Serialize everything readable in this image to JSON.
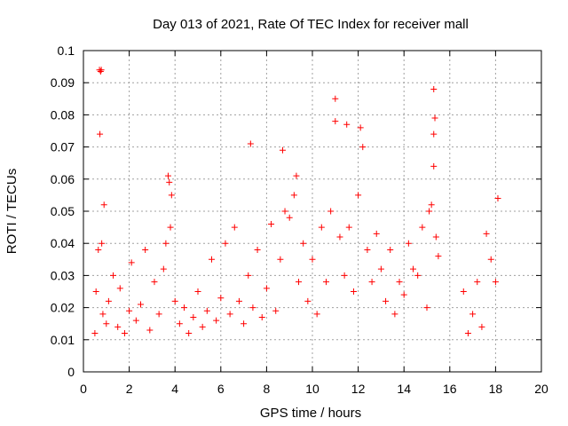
{
  "chart_data": {
    "type": "scatter",
    "title": "Day 013 of 2021, Rate Of TEC Index for receiver mall",
    "xlabel": "GPS time / hours",
    "ylabel": "ROTI / TECUs",
    "xlim": [
      0,
      20
    ],
    "ylim": [
      0,
      0.1
    ],
    "x_ticks": [
      "0",
      "2",
      "4",
      "6",
      "8",
      "10",
      "12",
      "14",
      "16",
      "18",
      "20"
    ],
    "y_ticks": [
      "0",
      "0.01",
      "0.02",
      "0.03",
      "0.04",
      "0.05",
      "0.06",
      "0.07",
      "0.08",
      "0.09",
      "0.1"
    ],
    "grid": true,
    "marker": "plus",
    "marker_color": "#ff0000",
    "series": [
      {
        "x": [
          0.7,
          0.75,
          0.78,
          0.72,
          0.9,
          3.7,
          3.75,
          3.85,
          7.3,
          8.7,
          9.3,
          11.0,
          11.0,
          11.5,
          12.1,
          12.2,
          15.3,
          15.35,
          15.3,
          15.3,
          18.1,
          0.5,
          0.55,
          0.65,
          0.8,
          0.85,
          1.0,
          1.1,
          1.3,
          1.5,
          1.6,
          1.8,
          2.0,
          2.1,
          2.3,
          2.5,
          2.7,
          2.9,
          3.1,
          3.3,
          3.5,
          3.6,
          3.8,
          4.0,
          4.2,
          4.4,
          4.6,
          4.8,
          5.0,
          5.2,
          5.4,
          5.6,
          5.8,
          6.0,
          6.2,
          6.4,
          6.6,
          6.8,
          7.0,
          7.2,
          7.4,
          7.6,
          7.8,
          8.0,
          8.2,
          8.4,
          8.6,
          8.8,
          9.0,
          9.2,
          9.4,
          9.6,
          9.8,
          10.0,
          10.2,
          10.4,
          10.6,
          10.8,
          11.2,
          11.4,
          11.6,
          11.8,
          12.0,
          12.4,
          12.6,
          12.8,
          13.0,
          13.2,
          13.4,
          13.6,
          13.8,
          14.0,
          14.2,
          14.4,
          14.6,
          14.8,
          15.0,
          15.1,
          15.2,
          15.4,
          15.5,
          16.6,
          16.8,
          17.0,
          17.2,
          17.4,
          17.6,
          17.8,
          18.0
        ],
        "y": [
          0.094,
          0.0935,
          0.094,
          0.074,
          0.052,
          0.061,
          0.059,
          0.055,
          0.071,
          0.069,
          0.061,
          0.085,
          0.078,
          0.077,
          0.076,
          0.07,
          0.088,
          0.079,
          0.074,
          0.064,
          0.054,
          0.012,
          0.025,
          0.038,
          0.04,
          0.018,
          0.015,
          0.022,
          0.03,
          0.014,
          0.026,
          0.012,
          0.019,
          0.034,
          0.016,
          0.021,
          0.038,
          0.013,
          0.028,
          0.018,
          0.032,
          0.04,
          0.045,
          0.022,
          0.015,
          0.02,
          0.012,
          0.017,
          0.025,
          0.014,
          0.019,
          0.035,
          0.016,
          0.023,
          0.04,
          0.018,
          0.045,
          0.022,
          0.015,
          0.03,
          0.02,
          0.038,
          0.017,
          0.026,
          0.046,
          0.019,
          0.035,
          0.05,
          0.048,
          0.055,
          0.028,
          0.04,
          0.022,
          0.035,
          0.018,
          0.045,
          0.028,
          0.05,
          0.042,
          0.03,
          0.045,
          0.025,
          0.055,
          0.038,
          0.028,
          0.043,
          0.032,
          0.022,
          0.038,
          0.018,
          0.028,
          0.024,
          0.04,
          0.032,
          0.03,
          0.045,
          0.02,
          0.05,
          0.052,
          0.042,
          0.036,
          0.025,
          0.012,
          0.018,
          0.028,
          0.014,
          0.043,
          0.035,
          0.028
        ]
      }
    ]
  }
}
